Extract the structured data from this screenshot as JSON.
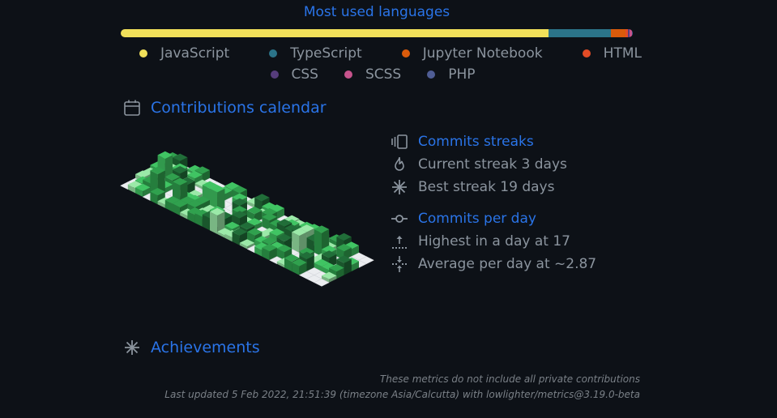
{
  "languages": {
    "title": "Most used languages",
    "items": [
      {
        "name": "JavaScript",
        "color": "#f1e05a",
        "percent": 83.6
      },
      {
        "name": "TypeScript",
        "color": "#2b7489",
        "percent": 12.2
      },
      {
        "name": "Jupyter Notebook",
        "color": "#da5b0b",
        "percent": 2.8
      },
      {
        "name": "HTML",
        "color": "#e34c26",
        "percent": 0.5
      },
      {
        "name": "CSS",
        "color": "#563d7c",
        "percent": 0.3
      },
      {
        "name": "SCSS",
        "color": "#c6538c",
        "percent": 0.4
      },
      {
        "name": "PHP",
        "color": "#4f5d95",
        "percent": 0.2
      }
    ]
  },
  "calendar": {
    "title": "Contributions calendar",
    "icon": "calendar-icon",
    "colors": {
      "empty": "#ebedf0",
      "levels": [
        "#9be9a8",
        "#40c463",
        "#30a14e",
        "#216e39"
      ]
    }
  },
  "streaks": {
    "title": "Commits streaks",
    "current": "Current streak 3 days",
    "best": "Best streak 19 days"
  },
  "per_day": {
    "title": "Commits per day",
    "highest": "Highest in a day at 17",
    "average": "Average per day at ~2.87"
  },
  "achievements": {
    "title": "Achievements"
  },
  "footer": {
    "line1": "These metrics do not include all private contributions",
    "line2": "Last updated 5 Feb 2022, 21:51:39 (timezone Asia/Calcutta) with lowlighter/metrics@3.19.0-beta"
  }
}
